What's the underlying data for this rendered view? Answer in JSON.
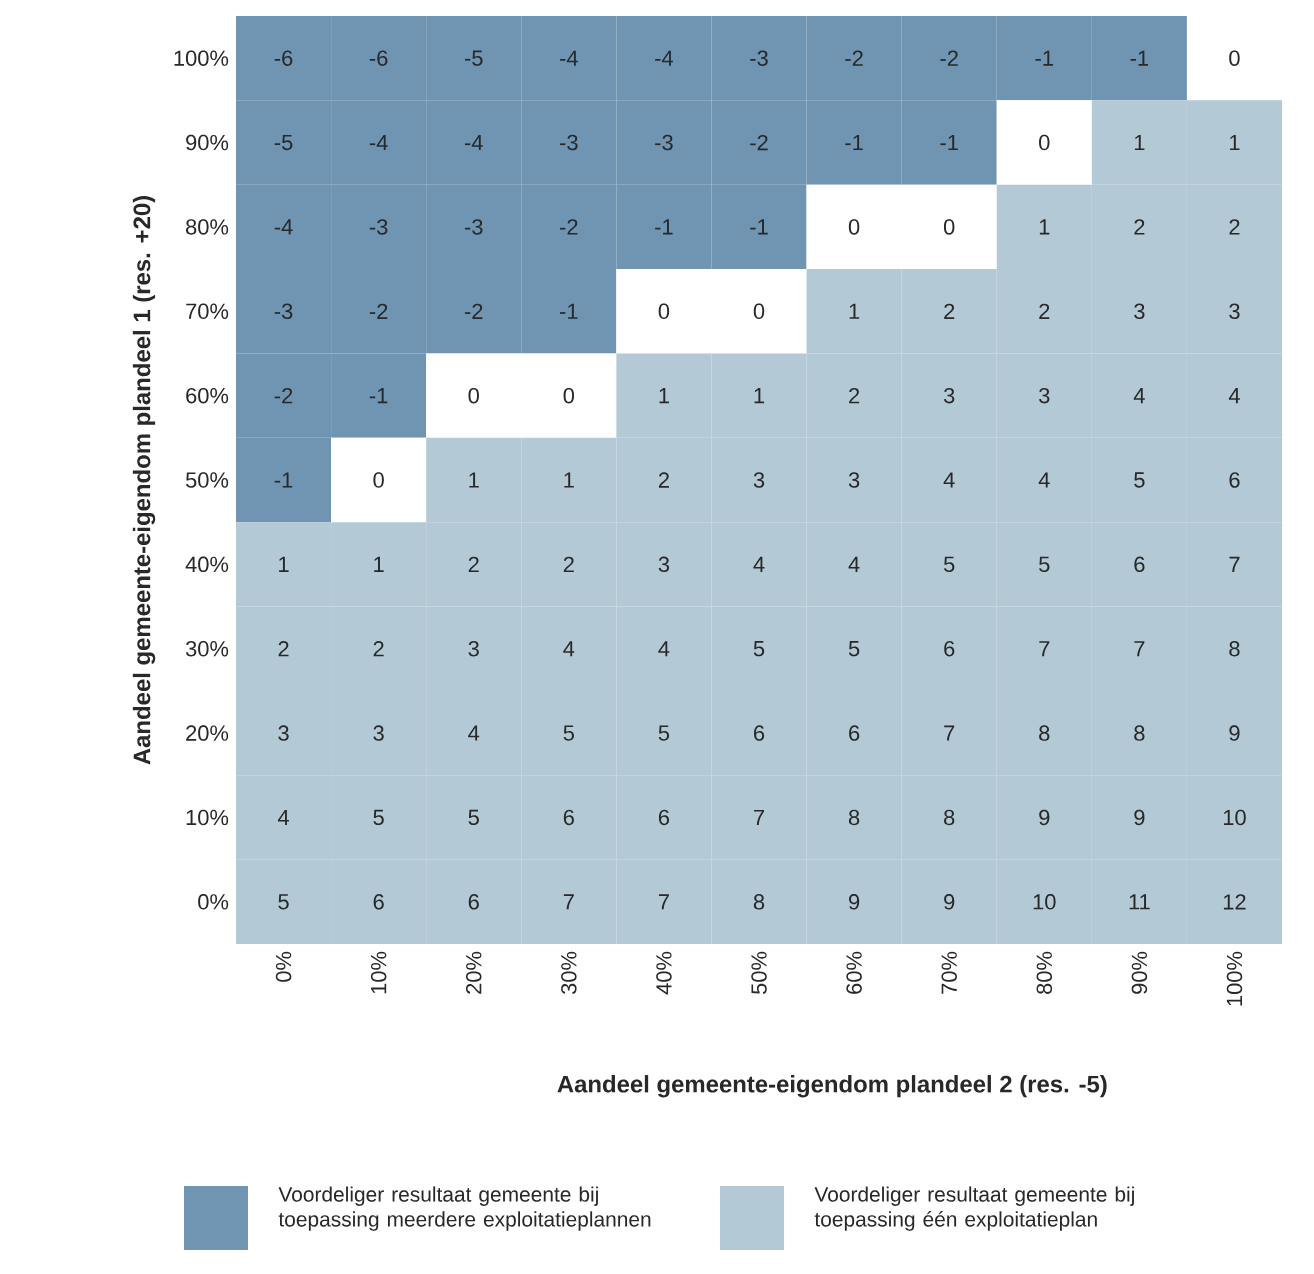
{
  "chart_data": {
    "type": "heatmap",
    "xlabel": "Aandeel gemeente-eigendom plandeel 2 (res. -5)",
    "ylabel": "Aandeel gemeente-eigendom plandeel 1 (res. +20)",
    "categories": [
      "0%",
      "10%",
      "20%",
      "30%",
      "40%",
      "50%",
      "60%",
      "70%",
      "80%",
      "90%",
      "100%"
    ],
    "y_categories": [
      "100%",
      "90%",
      "80%",
      "70%",
      "60%",
      "50%",
      "40%",
      "30%",
      "20%",
      "10%",
      "0%"
    ],
    "cells": [
      [
        -6,
        -6,
        -5,
        -4,
        -4,
        -3,
        -2,
        -2,
        -1,
        -1,
        0
      ],
      [
        -5,
        -4,
        -4,
        -3,
        -3,
        -2,
        -1,
        -1,
        0,
        1,
        1
      ],
      [
        -4,
        -3,
        -3,
        -2,
        -1,
        -1,
        0,
        0,
        1,
        2,
        2
      ],
      [
        -3,
        -2,
        -2,
        -1,
        0,
        0,
        1,
        2,
        2,
        3,
        3
      ],
      [
        -2,
        -1,
        0,
        0,
        1,
        1,
        2,
        3,
        3,
        4,
        4
      ],
      [
        -1,
        0,
        1,
        1,
        2,
        3,
        3,
        4,
        4,
        5,
        6
      ],
      [
        1,
        1,
        2,
        2,
        3,
        4,
        4,
        5,
        5,
        6,
        7
      ],
      [
        2,
        2,
        3,
        4,
        4,
        5,
        5,
        6,
        7,
        7,
        8
      ],
      [
        3,
        3,
        4,
        5,
        5,
        6,
        6,
        7,
        8,
        8,
        9
      ],
      [
        4,
        5,
        5,
        6,
        6,
        7,
        8,
        8,
        9,
        9,
        10
      ],
      [
        5,
        6,
        6,
        7,
        7,
        8,
        9,
        9,
        10,
        11,
        12
      ]
    ],
    "data_labels": true,
    "annotations": [
      "Voordeliger resultaat gemeente bij toepassing meerdere exploitatieplannen",
      "Voordeliger resultaat gemeente bij toepassing één exploitatieplan"
    ]
  }
}
